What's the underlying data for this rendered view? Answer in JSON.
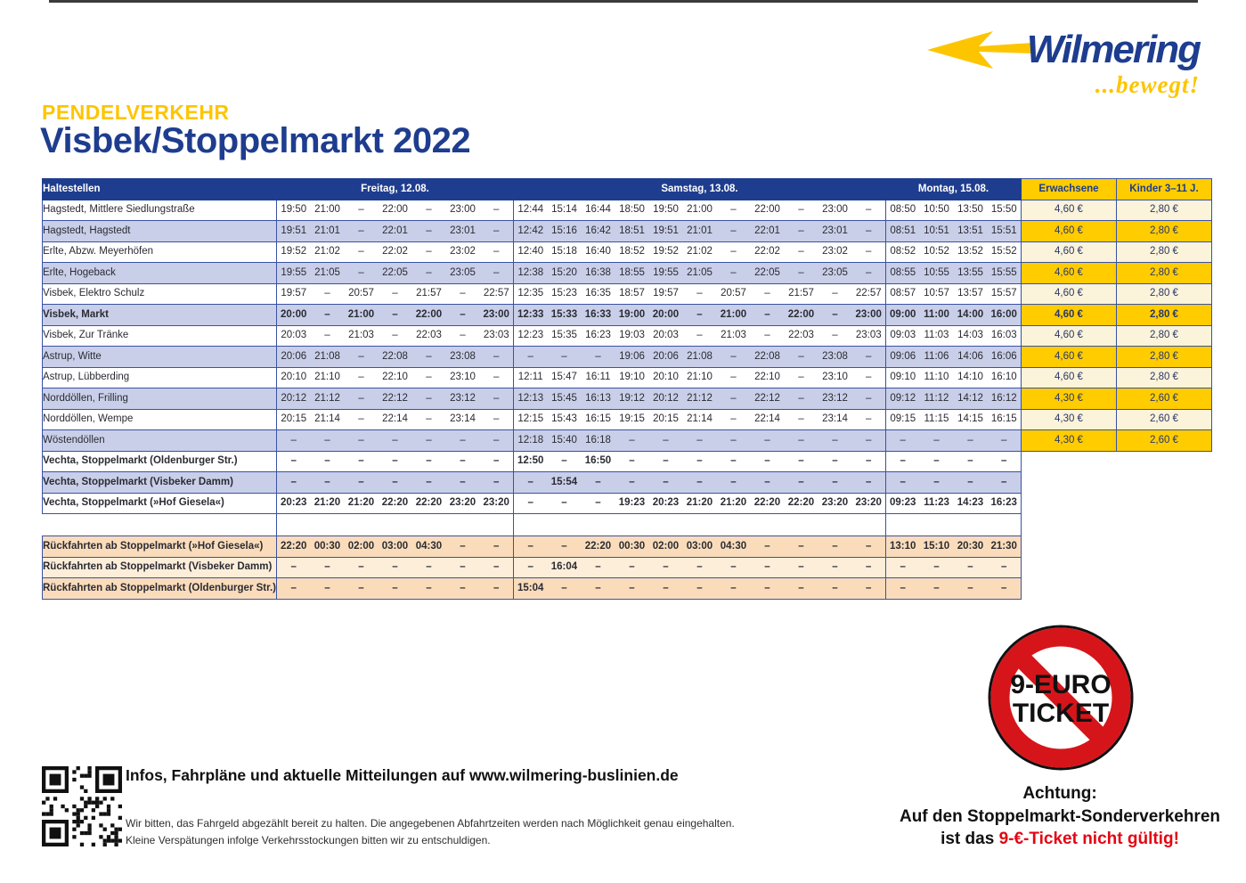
{
  "logo": {
    "brand": "Wilmering",
    "tagline": "...bewegt!"
  },
  "heading": {
    "kicker": "PENDELVERKEHR",
    "title": "Visbek/Stoppelmarkt 2022"
  },
  "colors": {
    "navy": "#1e3d8f",
    "gold": "#ffcc00",
    "lavender": "#c9cfe8",
    "cream": "#fbf3da",
    "peach": "#fadcbb",
    "peach_light": "#fdeeda",
    "line": "#3952a3",
    "red": "#e30613"
  },
  "table": {
    "stop_header": "Haltestellen",
    "day_groups": [
      {
        "label": "Freitag, 12.08.",
        "cols": 7
      },
      {
        "label": "Samstag, 13.08.",
        "cols": 11
      },
      {
        "label": "Montag, 15.08.",
        "cols": 4
      }
    ],
    "fare_headers": [
      "Erwachsene",
      "Kinder 3–11 J."
    ],
    "rows": [
      {
        "stop": "Hagstedt, Mittlere Siedlungstraße",
        "bold": false,
        "f": [
          "19:50",
          "21:00",
          "–",
          "22:00",
          "–",
          "23:00",
          "–"
        ],
        "s": [
          "12:44",
          "15:14",
          "16:44",
          "18:50",
          "19:50",
          "21:00",
          "–",
          "22:00",
          "–",
          "23:00",
          "–"
        ],
        "m": [
          "08:50",
          "10:50",
          "13:50",
          "15:50"
        ],
        "fares": [
          "4,60 €",
          "2,80 €"
        ]
      },
      {
        "stop": "Hagstedt, Hagstedt",
        "bold": false,
        "f": [
          "19:51",
          "21:01",
          "–",
          "22:01",
          "–",
          "23:01",
          "–"
        ],
        "s": [
          "12:42",
          "15:16",
          "16:42",
          "18:51",
          "19:51",
          "21:01",
          "–",
          "22:01",
          "–",
          "23:01",
          "–"
        ],
        "m": [
          "08:51",
          "10:51",
          "13:51",
          "15:51"
        ],
        "fares": [
          "4,60 €",
          "2,80 €"
        ]
      },
      {
        "stop": "Erlte, Abzw. Meyerhöfen",
        "bold": false,
        "f": [
          "19:52",
          "21:02",
          "–",
          "22:02",
          "–",
          "23:02",
          "–"
        ],
        "s": [
          "12:40",
          "15:18",
          "16:40",
          "18:52",
          "19:52",
          "21:02",
          "–",
          "22:02",
          "–",
          "23:02",
          "–"
        ],
        "m": [
          "08:52",
          "10:52",
          "13:52",
          "15:52"
        ],
        "fares": [
          "4,60 €",
          "2,80 €"
        ]
      },
      {
        "stop": "Erlte, Hogeback",
        "bold": false,
        "f": [
          "19:55",
          "21:05",
          "–",
          "22:05",
          "–",
          "23:05",
          "–"
        ],
        "s": [
          "12:38",
          "15:20",
          "16:38",
          "18:55",
          "19:55",
          "21:05",
          "–",
          "22:05",
          "–",
          "23:05",
          "–"
        ],
        "m": [
          "08:55",
          "10:55",
          "13:55",
          "15:55"
        ],
        "fares": [
          "4,60 €",
          "2,80 €"
        ]
      },
      {
        "stop": "Visbek, Elektro Schulz",
        "bold": false,
        "f": [
          "19:57",
          "–",
          "20:57",
          "–",
          "21:57",
          "–",
          "22:57"
        ],
        "s": [
          "12:35",
          "15:23",
          "16:35",
          "18:57",
          "19:57",
          "–",
          "20:57",
          "–",
          "21:57",
          "–",
          "22:57"
        ],
        "m": [
          "08:57",
          "10:57",
          "13:57",
          "15:57"
        ],
        "fares": [
          "4,60 €",
          "2,80 €"
        ]
      },
      {
        "stop": "Visbek, Markt",
        "bold": true,
        "f": [
          "20:00",
          "–",
          "21:00",
          "–",
          "22:00",
          "–",
          "23:00"
        ],
        "s": [
          "12:33",
          "15:33",
          "16:33",
          "19:00",
          "20:00",
          "–",
          "21:00",
          "–",
          "22:00",
          "–",
          "23:00"
        ],
        "m": [
          "09:00",
          "11:00",
          "14:00",
          "16:00"
        ],
        "fares": [
          "4,60 €",
          "2,80 €"
        ]
      },
      {
        "stop": "Visbek, Zur Tränke",
        "bold": false,
        "f": [
          "20:03",
          "–",
          "21:03",
          "–",
          "22:03",
          "–",
          "23:03"
        ],
        "s": [
          "12:23",
          "15:35",
          "16:23",
          "19:03",
          "20:03",
          "–",
          "21:03",
          "–",
          "22:03",
          "–",
          "23:03"
        ],
        "m": [
          "09:03",
          "11:03",
          "14:03",
          "16:03"
        ],
        "fares": [
          "4,60 €",
          "2,80 €"
        ]
      },
      {
        "stop": "Astrup, Witte",
        "bold": false,
        "f": [
          "20:06",
          "21:08",
          "–",
          "22:08",
          "–",
          "23:08",
          "–"
        ],
        "s": [
          "–",
          "–",
          "–",
          "19:06",
          "20:06",
          "21:08",
          "–",
          "22:08",
          "–",
          "23:08",
          "–"
        ],
        "m": [
          "09:06",
          "11:06",
          "14:06",
          "16:06"
        ],
        "fares": [
          "4,60 €",
          "2,80 €"
        ]
      },
      {
        "stop": "Astrup, Lübberding",
        "bold": false,
        "f": [
          "20:10",
          "21:10",
          "–",
          "22:10",
          "–",
          "23:10",
          "–"
        ],
        "s": [
          "12:11",
          "15:47",
          "16:11",
          "19:10",
          "20:10",
          "21:10",
          "–",
          "22:10",
          "–",
          "23:10",
          "–"
        ],
        "m": [
          "09:10",
          "11:10",
          "14:10",
          "16:10"
        ],
        "fares": [
          "4,60 €",
          "2,80 €"
        ]
      },
      {
        "stop": "Norddöllen, Frilling",
        "bold": false,
        "f": [
          "20:12",
          "21:12",
          "–",
          "22:12",
          "–",
          "23:12",
          "–"
        ],
        "s": [
          "12:13",
          "15:45",
          "16:13",
          "19:12",
          "20:12",
          "21:12",
          "–",
          "22:12",
          "–",
          "23:12",
          "–"
        ],
        "m": [
          "09:12",
          "11:12",
          "14:12",
          "16:12"
        ],
        "fares": [
          "4,30 €",
          "2,60 €"
        ]
      },
      {
        "stop": "Norddöllen, Wempe",
        "bold": false,
        "f": [
          "20:15",
          "21:14",
          "–",
          "22:14",
          "–",
          "23:14",
          "–"
        ],
        "s": [
          "12:15",
          "15:43",
          "16:15",
          "19:15",
          "20:15",
          "21:14",
          "–",
          "22:14",
          "–",
          "23:14",
          "–"
        ],
        "m": [
          "09:15",
          "11:15",
          "14:15",
          "16:15"
        ],
        "fares": [
          "4,30 €",
          "2,60 €"
        ]
      },
      {
        "stop": "Wöstendöllen",
        "bold": false,
        "f": [
          "–",
          "–",
          "–",
          "–",
          "–",
          "–",
          "–"
        ],
        "s": [
          "12:18",
          "15:40",
          "16:18",
          "–",
          "–",
          "–",
          "–",
          "–",
          "–",
          "–",
          "–"
        ],
        "m": [
          "–",
          "–",
          "–",
          "–"
        ],
        "fares": [
          "4,30 €",
          "2,60 €"
        ]
      },
      {
        "stop": "Vechta, Stoppelmarkt (Oldenburger Str.)",
        "bold": true,
        "f": [
          "–",
          "–",
          "–",
          "–",
          "–",
          "–",
          "–"
        ],
        "s": [
          "12:50",
          "–",
          "16:50",
          "–",
          "–",
          "–",
          "–",
          "–",
          "–",
          "–",
          "–"
        ],
        "m": [
          "–",
          "–",
          "–",
          "–"
        ],
        "fares": null
      },
      {
        "stop": "Vechta, Stoppelmarkt (Visbeker Damm)",
        "bold": true,
        "f": [
          "–",
          "–",
          "–",
          "–",
          "–",
          "–",
          "–"
        ],
        "s": [
          "–",
          "15:54",
          "–",
          "–",
          "–",
          "–",
          "–",
          "–",
          "–",
          "–",
          "–"
        ],
        "m": [
          "–",
          "–",
          "–",
          "–"
        ],
        "fares": null
      },
      {
        "stop": "Vechta, Stoppelmarkt (»Hof Giesela«)",
        "bold": true,
        "f": [
          "20:23",
          "21:20",
          "21:20",
          "22:20",
          "22:20",
          "23:20",
          "23:20"
        ],
        "s": [
          "–",
          "–",
          "–",
          "19:23",
          "20:23",
          "21:20",
          "21:20",
          "22:20",
          "22:20",
          "23:20",
          "23:20"
        ],
        "m": [
          "09:23",
          "11:23",
          "14:23",
          "16:23"
        ],
        "fares": null
      }
    ],
    "return_rows": [
      {
        "stop": "Rückfahrten ab Stoppelmarkt (»Hof Giesela«)",
        "f": [
          "22:20",
          "00:30",
          "02:00",
          "03:00",
          "04:30",
          "–",
          "–"
        ],
        "s": [
          "–",
          "–",
          "22:20",
          "00:30",
          "02:00",
          "03:00",
          "04:30",
          "–",
          "–",
          "–",
          "–"
        ],
        "m": [
          "13:10",
          "15:10",
          "20:30",
          "21:30"
        ]
      },
      {
        "stop": "Rückfahrten ab Stoppelmarkt (Visbeker Damm)",
        "f": [
          "–",
          "–",
          "–",
          "–",
          "–",
          "–",
          "–"
        ],
        "s": [
          "–",
          "16:04",
          "–",
          "–",
          "–",
          "–",
          "–",
          "–",
          "–",
          "–",
          "–"
        ],
        "m": [
          "–",
          "–",
          "–",
          "–"
        ]
      },
      {
        "stop": "Rückfahrten ab Stoppelmarkt (Oldenburger Str.)",
        "f": [
          "–",
          "–",
          "–",
          "–",
          "–",
          "–",
          "–"
        ],
        "s": [
          "15:04",
          "–",
          "–",
          "–",
          "–",
          "–",
          "–",
          "–",
          "–",
          "–",
          "–"
        ],
        "m": [
          "–",
          "–",
          "–",
          "–"
        ]
      }
    ]
  },
  "footer": {
    "info": "Infos, Fahrpläne und aktuelle Mitteilungen auf www.wilmering-buslinien.de",
    "note1": "Wir bitten, das Fahrgeld abgezählt bereit zu halten. Die angegebenen Abfahrtzeiten werden nach Möglichkeit genau eingehalten.",
    "note2": "Kleine Verspätungen infolge Verkehrsstockungen bitten wir zu entschuldigen."
  },
  "notice": {
    "sign_line1": "9-EURO",
    "sign_line2": "TICKET",
    "line1": "Achtung:",
    "line2": "Auf den Stoppelmarkt-Sonderverkehren",
    "line3_black": "ist das ",
    "line3_red": "9-€-Ticket nicht gültig!"
  }
}
